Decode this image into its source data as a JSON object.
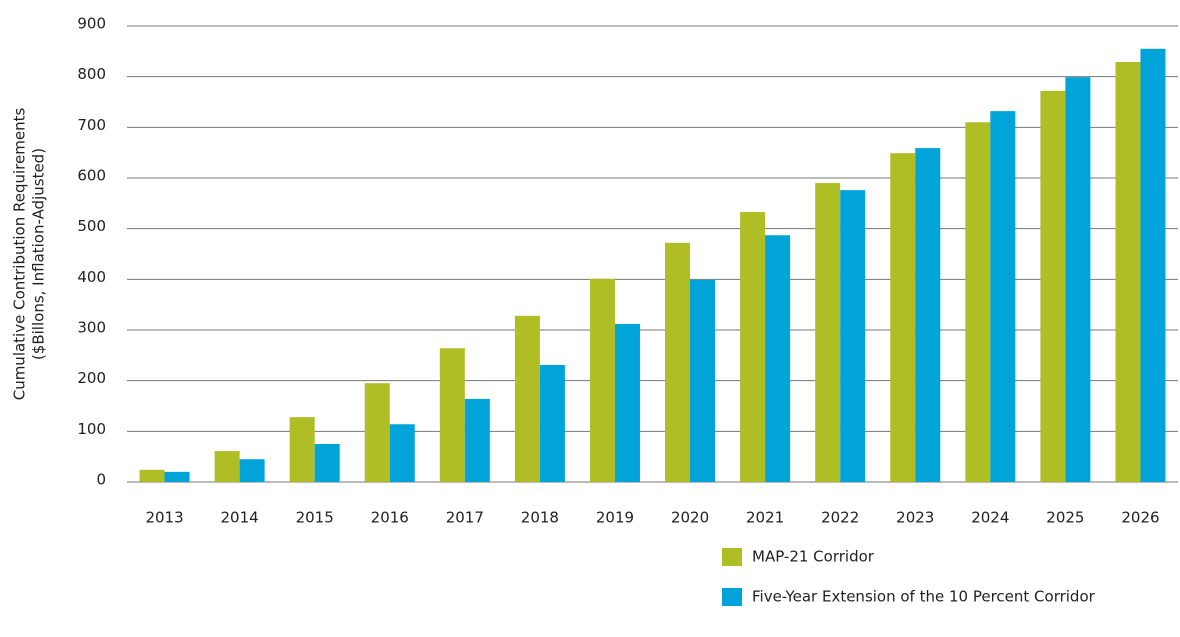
{
  "chart_data": {
    "type": "bar",
    "y_label": [
      "Cumulative Contribution Requirements",
      "($Billons, Inflation-Adjusted)"
    ],
    "categories": [
      "2013",
      "2014",
      "2015",
      "2016",
      "2017",
      "2018",
      "2019",
      "2020",
      "2021",
      "2022",
      "2023",
      "2024",
      "2025",
      "2026"
    ],
    "series": [
      {
        "name": "MAP-21 Corridor",
        "color": "#afbe25",
        "values": [
          24,
          61,
          128,
          195,
          264,
          328,
          401,
          472,
          533,
          590,
          649,
          710,
          772,
          829
        ]
      },
      {
        "name": "Five-Year Extension of the 10 Percent Corridor",
        "color": "#00a4d9",
        "values": [
          20,
          45,
          75,
          114,
          164,
          231,
          312,
          399,
          487,
          576,
          659,
          732,
          799,
          855
        ]
      }
    ],
    "ylim": [
      0,
      900
    ],
    "yticks": [
      0,
      100,
      200,
      300,
      400,
      500,
      600,
      700,
      800,
      900
    ],
    "grid": true
  }
}
